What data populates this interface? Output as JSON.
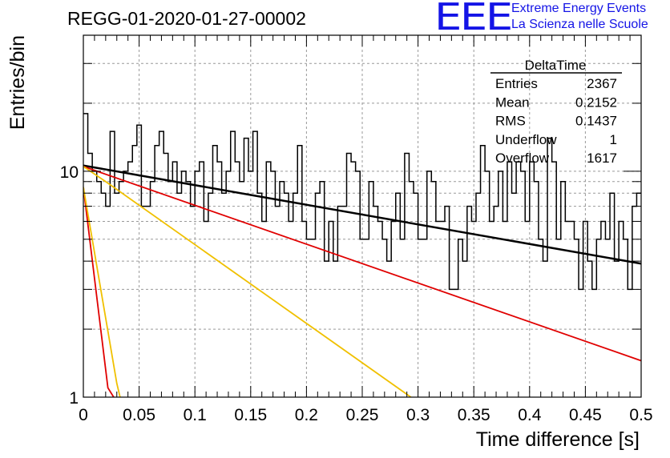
{
  "title": "REGG-01-2020-01-27-00002",
  "logo": {
    "mark": "EEE",
    "line1": "Extreme Energy Events",
    "line2": "La Scienza nelle Scuole",
    "color": "#1414e6"
  },
  "stats": {
    "name": "DeltaTime",
    "rows": [
      {
        "label": "Entries",
        "value": "2367"
      },
      {
        "label": "Mean",
        "value": "0.2152"
      },
      {
        "label": "RMS",
        "value": "0.1437"
      },
      {
        "label": "Underflow",
        "value": "1"
      },
      {
        "label": "Overflow",
        "value": "1617"
      }
    ]
  },
  "chart_data": {
    "type": "line",
    "xlabel": "Time difference [s]",
    "ylabel": "Entries/bin",
    "xlim": [
      0,
      0.5
    ],
    "ylim": [
      1,
      40
    ],
    "log_y": true,
    "grid": true,
    "xticks": [
      "0",
      "0.05",
      "0.1",
      "0.15",
      "0.2",
      "0.25",
      "0.3",
      "0.35",
      "0.4",
      "0.45",
      "0.5"
    ],
    "yticks": [
      "1",
      "10"
    ],
    "bin_width": 0.004,
    "histogram": [
      18,
      12,
      10,
      9,
      8,
      7,
      15,
      8,
      9,
      10,
      11,
      13,
      16,
      7,
      7,
      9,
      13,
      15,
      12,
      9,
      11,
      8,
      10,
      9,
      7,
      10,
      11,
      6,
      8,
      13,
      11,
      8,
      10,
      15,
      11,
      9,
      14,
      10,
      15,
      8,
      6,
      11,
      10,
      7,
      9,
      8,
      6,
      8,
      13,
      6,
      5,
      5,
      8,
      9,
      4,
      6,
      4,
      7,
      7,
      12,
      11,
      10,
      5,
      5,
      9,
      7,
      6,
      5,
      4,
      6,
      8,
      5,
      12,
      9,
      8,
      5,
      5,
      10,
      9,
      6,
      6,
      7,
      3,
      3,
      5,
      4,
      7,
      6,
      8,
      13,
      10,
      6,
      7,
      10,
      6,
      11,
      8,
      11,
      10,
      6,
      11,
      9,
      5,
      4,
      14,
      11,
      5,
      9,
      6,
      6,
      5,
      3,
      6,
      4,
      3,
      5,
      6,
      5,
      8,
      4,
      6,
      5,
      3,
      7,
      8,
      5,
      6,
      5,
      9,
      5,
      9,
      4,
      8,
      3,
      4,
      4,
      7,
      6,
      7,
      6,
      9,
      3,
      5,
      3,
      7,
      5,
      8,
      9,
      6,
      5,
      9,
      7,
      5,
      6,
      6,
      8,
      2,
      2,
      8,
      8,
      7,
      8,
      6,
      5,
      5,
      4,
      6,
      2,
      2,
      8,
      5,
      6,
      3,
      3,
      7,
      6,
      6,
      6,
      6,
      8,
      8,
      7,
      8,
      4,
      8,
      7,
      8,
      3,
      5,
      8,
      8,
      5,
      4,
      5,
      6,
      7,
      7,
      3,
      7,
      5,
      7,
      6,
      6,
      5,
      6,
      7,
      6,
      6,
      3,
      5,
      4,
      5,
      8,
      8,
      5,
      6,
      6,
      3,
      8,
      6,
      7,
      4,
      8,
      5,
      6,
      5,
      5,
      7,
      6,
      3,
      3,
      5,
      5,
      6,
      8,
      6,
      8,
      6,
      8,
      6,
      6,
      5,
      5,
      5,
      6,
      8,
      6,
      8,
      6,
      6,
      8,
      6,
      6,
      8,
      8,
      6,
      6,
      8,
      7,
      8,
      6,
      6,
      5,
      6,
      5,
      5,
      3,
      4,
      6,
      5,
      6,
      6,
      8,
      5,
      7,
      7,
      7,
      6,
      6,
      6,
      5,
      8,
      8,
      6,
      5,
      5,
      7,
      8,
      6,
      8,
      6,
      5,
      5,
      8,
      8,
      5,
      6,
      5,
      8
    ],
    "series": [
      {
        "color": "#000000",
        "x": [
          0,
          0.5
        ],
        "y": [
          10.6,
          3.9
        ]
      },
      {
        "color": "#e00000",
        "x": [
          0,
          0.5
        ],
        "y": [
          10.5,
          1.45
        ]
      },
      {
        "color": "#f0c000",
        "x": [
          0,
          0.02,
          0.3
        ],
        "y": [
          10.5,
          9.0,
          0.95
        ]
      },
      {
        "color": "#e00000",
        "x": [
          0,
          0.022,
          0.03
        ],
        "y": [
          8.5,
          1.1,
          0.95
        ]
      },
      {
        "color": "#f0c000",
        "x": [
          0,
          0.03,
          0.034
        ],
        "y": [
          8.5,
          1.15,
          0.95
        ]
      }
    ]
  }
}
